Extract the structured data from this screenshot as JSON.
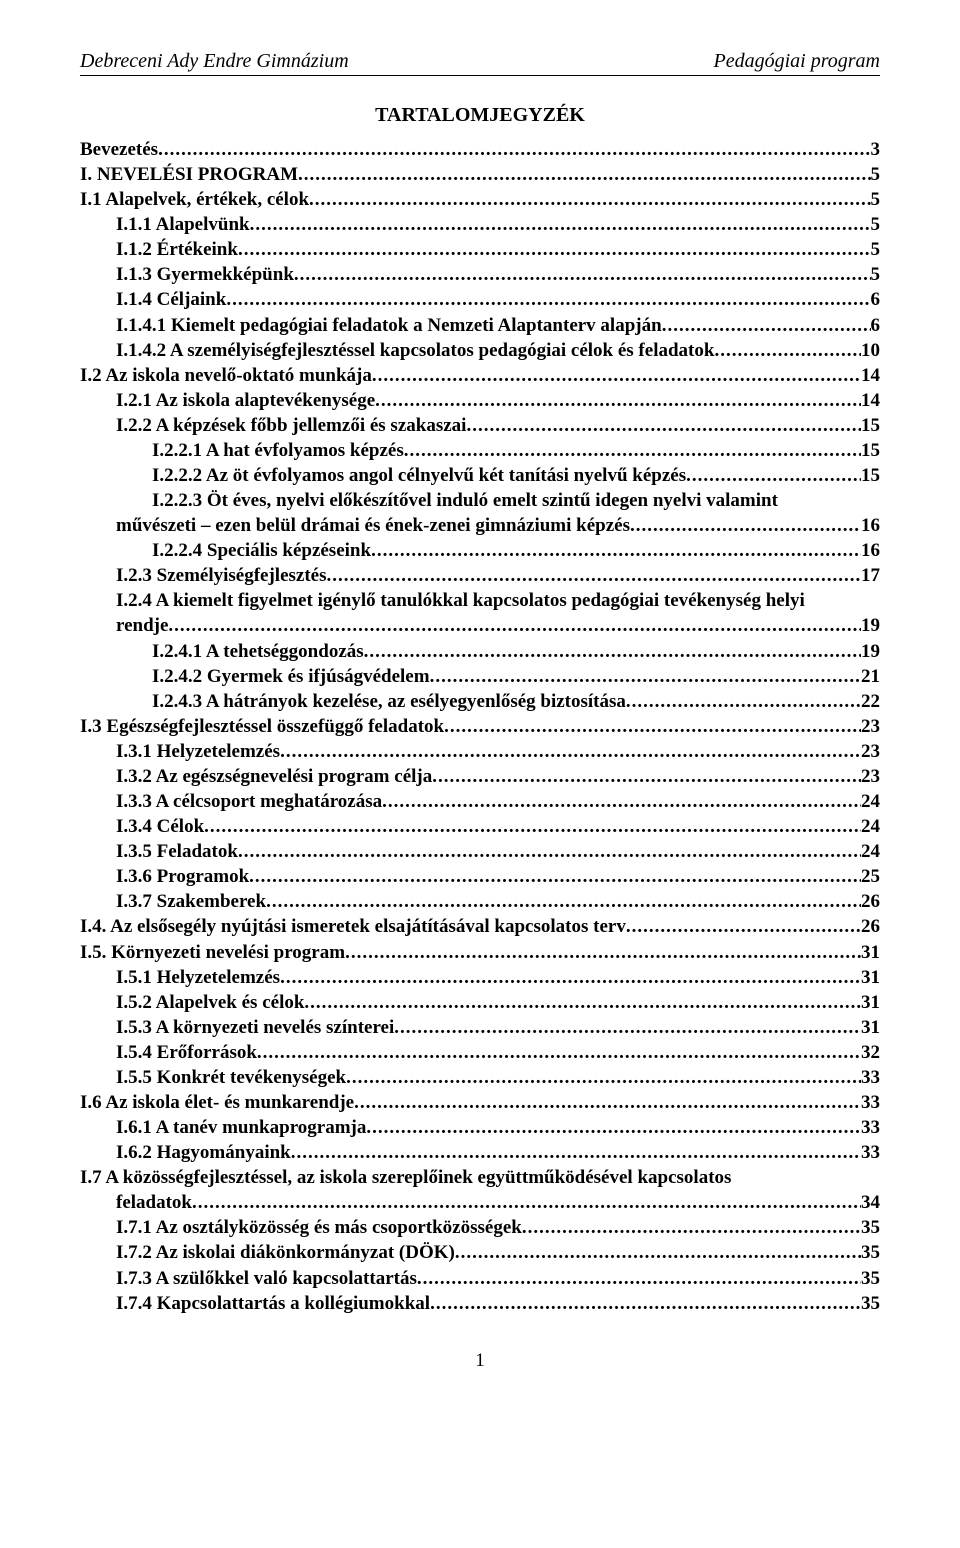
{
  "header": {
    "left": "Debreceni Ady Endre Gimnázium",
    "right": "Pedagógiai program"
  },
  "title": "TARTALOMJEGYZÉK",
  "page_number": "1",
  "toc": [
    {
      "level": 0,
      "label": "Bevezetés",
      "page": "3"
    },
    {
      "level": 0,
      "label": "I. NEVELÉSI PROGRAM",
      "page": "5"
    },
    {
      "level": 0,
      "label": "I.1 Alapelvek, értékek, célok",
      "page": "5"
    },
    {
      "level": 1,
      "label": "I.1.1 Alapelvünk",
      "page": "5"
    },
    {
      "level": 1,
      "label": "I.1.2 Értékeink",
      "page": "5"
    },
    {
      "level": 1,
      "label": "I.1.3 Gyermekképünk",
      "page": "5"
    },
    {
      "level": 1,
      "label": "I.1.4 Céljaink",
      "page": "6"
    },
    {
      "level": 1,
      "label": "I.1.4.1 Kiemelt pedagógiai feladatok a Nemzeti Alaptanterv alapján",
      "page": "6"
    },
    {
      "level": 1,
      "label": "I.1.4.2 A személyiségfejlesztéssel kapcsolatos pedagógiai célok és feladatok",
      "page": "10"
    },
    {
      "level": 0,
      "label": "I.2 Az iskola nevelő-oktató munkája",
      "page": "14"
    },
    {
      "level": 1,
      "label": "I.2.1 Az iskola alaptevékenysége",
      "page": "14"
    },
    {
      "level": 1,
      "label": "I.2.2 A képzések főbb jellemzői és szakaszai",
      "page": "15"
    },
    {
      "level": 2,
      "label": "I.2.2.1 A hat évfolyamos képzés",
      "page": "15"
    },
    {
      "level": 2,
      "label": "I.2.2.2 Az öt évfolyamos angol célnyelvű két tanítási nyelvű képzés",
      "page": "15"
    },
    {
      "level": 2,
      "label": "I.2.2.3 Öt éves, nyelvi előkészítővel induló emelt szintű idegen nyelvi valamint",
      "cont": "művészeti – ezen belül drámai és ének-zenei gimnáziumi képzés",
      "page": "16"
    },
    {
      "level": 2,
      "label": "I.2.2.4 Speciális képzéseink",
      "page": "16"
    },
    {
      "level": 1,
      "label": "I.2.3 Személyiségfejlesztés",
      "page": "17"
    },
    {
      "level": 1,
      "label": "I.2.4 A kiemelt figyelmet igénylő tanulókkal kapcsolatos pedagógiai tevékenység helyi",
      "cont": "rendje",
      "page": "19"
    },
    {
      "level": 2,
      "label": "I.2.4.1 A tehetséggondozás",
      "page": "19"
    },
    {
      "level": 2,
      "label": "I.2.4.2 Gyermek és ifjúságvédelem",
      "page": "21"
    },
    {
      "level": 2,
      "label": "I.2.4.3 A hátrányok kezelése, az esélyegyenlőség biztosítása",
      "page": "22"
    },
    {
      "level": 0,
      "label": "I.3 Egészségfejlesztéssel összefüggő feladatok",
      "page": "23"
    },
    {
      "level": 1,
      "label": "I.3.1 Helyzetelemzés",
      "page": "23"
    },
    {
      "level": 1,
      "label": "I.3.2 Az egészségnevelési program célja",
      "page": "23"
    },
    {
      "level": 1,
      "label": "I.3.3 A célcsoport meghatározása",
      "page": "24"
    },
    {
      "level": 1,
      "label": "I.3.4 Célok",
      "page": "24"
    },
    {
      "level": 1,
      "label": "I.3.5 Feladatok",
      "page": "24"
    },
    {
      "level": 1,
      "label": "I.3.6 Programok",
      "page": "25"
    },
    {
      "level": 1,
      "label": "I.3.7 Szakemberek",
      "page": "26"
    },
    {
      "level": 0,
      "label": "I.4. Az elsősegély nyújtási ismeretek elsajátításával kapcsolatos terv",
      "page": "26"
    },
    {
      "level": 0,
      "label": "I.5. Környezeti nevelési program",
      "page": "31"
    },
    {
      "level": 1,
      "label": "I.5.1 Helyzetelemzés",
      "page": "31"
    },
    {
      "level": 1,
      "label": "I.5.2 Alapelvek és célok",
      "page": "31"
    },
    {
      "level": 1,
      "label": "I.5.3 A környezeti nevelés színterei",
      "page": "31"
    },
    {
      "level": 1,
      "label": "I.5.4 Erőforrások",
      "page": "32"
    },
    {
      "level": 1,
      "label": "I.5.5 Konkrét tevékenységek",
      "page": "33"
    },
    {
      "level": 0,
      "label": "I.6 Az iskola élet- és munkarendje",
      "page": "33"
    },
    {
      "level": 1,
      "label": "I.6.1 A tanév munkaprogramja",
      "page": "33"
    },
    {
      "level": 1,
      "label": "I.6.2 Hagyományaink",
      "page": "33"
    },
    {
      "level": 0,
      "label": "I.7 A közösségfejlesztéssel, az iskola szereplőinek együttműködésével kapcsolatos",
      "cont": "feladatok",
      "page": "34"
    },
    {
      "level": 1,
      "label": "I.7.1 Az osztályközösség és más csoportközösségek",
      "page": "35"
    },
    {
      "level": 1,
      "label": "I.7.2 Az iskolai diákönkormányzat (DÖK)",
      "page": "35"
    },
    {
      "level": 1,
      "label": "I.7.3 A szülőkkel való kapcsolattartás",
      "page": "35"
    },
    {
      "level": 1,
      "label": "I.7.4 Kapcsolattartás a kollégiumokkal",
      "page": "35"
    }
  ]
}
